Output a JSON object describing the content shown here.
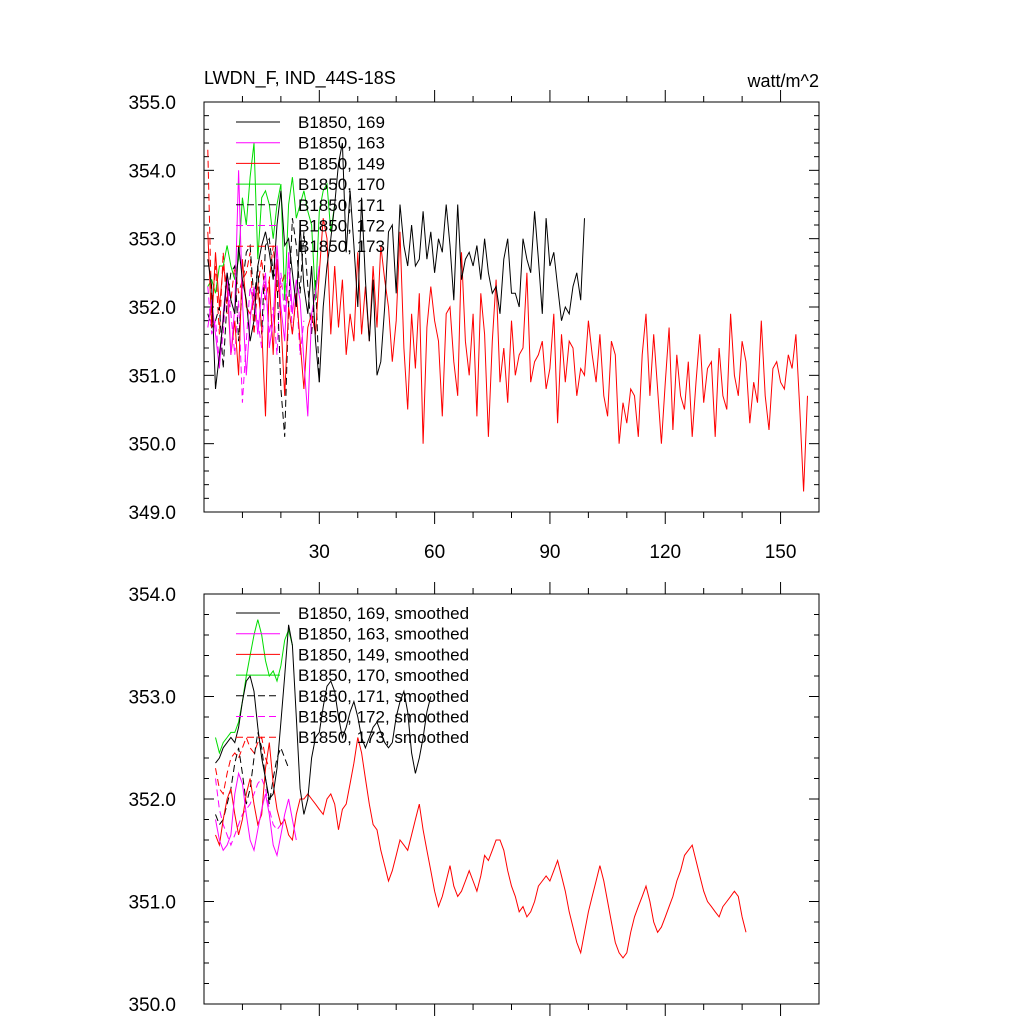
{
  "chart_data": [
    {
      "type": "line",
      "title": "LWDN_F, IND_44S-18S",
      "units": "watt/m^2",
      "xlim": [
        0,
        160
      ],
      "ylim": [
        349.0,
        355.0
      ],
      "xticks": [
        30,
        60,
        90,
        120,
        150
      ],
      "xtick_labels": [
        "30",
        "60",
        "90",
        "120",
        "150"
      ],
      "yticks": [
        349,
        350,
        351,
        352,
        353,
        354,
        355
      ],
      "ytick_labels": [
        "349.0",
        "350.0",
        "351.0",
        "352.0",
        "353.0",
        "354.0",
        "355.0"
      ],
      "legend_position": "top-left",
      "series": [
        {
          "name": "B1850, 169",
          "color": "#000000",
          "dash": "solid",
          "x_start": 1,
          "values": [
            352.7,
            352.3,
            350.8,
            351.3,
            351.8,
            352.5,
            352.1,
            351.9,
            352.9,
            352.4,
            352.1,
            351.5,
            351.8,
            352.6,
            352.9,
            353.1,
            352.8,
            352.4,
            353.2,
            353.7,
            352.9,
            353.0,
            352.5,
            352.0,
            353.2,
            352.3,
            351.9,
            352.6,
            351.5,
            350.9,
            352.0,
            352.6,
            353.0,
            353.5,
            354.1,
            354.4,
            352.8,
            353.7,
            352.9,
            352.0,
            353.6,
            352.4,
            351.5,
            352.4,
            351.0,
            351.2,
            352.0,
            353.1,
            353.2,
            352.2,
            353.5,
            352.9,
            352.6,
            353.2,
            352.6,
            352.7,
            353.4,
            352.7,
            353.1,
            352.5,
            353.0,
            352.8,
            353.5,
            352.9,
            352.1,
            353.5,
            352.4,
            352.7,
            352.8,
            352.6,
            352.9,
            352.4,
            353.0,
            352.5,
            352.2,
            352.3,
            351.9,
            352.7,
            353.0,
            352.2,
            352.2,
            352.0,
            353.0,
            352.7,
            352.5,
            353.4,
            352.7,
            351.9,
            353.3,
            352.6,
            352.8,
            352.3,
            351.8,
            352.0,
            351.9,
            352.3,
            352.5,
            352.1,
            353.3
          ]
        },
        {
          "name": "B1850, 163",
          "color": "#ff00ff",
          "dash": "solid",
          "x_start": 1,
          "values": [
            351.7,
            352.1,
            351.6,
            351.1,
            351.9,
            352.5,
            351.3,
            352.0,
            354.0,
            352.1,
            351.0,
            351.8,
            352.3,
            351.6,
            352.2,
            352.5,
            351.4,
            351.8,
            352.9,
            352.0,
            351.5,
            352.8,
            351.9,
            352.4,
            352.1,
            351.2,
            350.4,
            351.9,
            352.2,
            352.6
          ]
        },
        {
          "name": "B1850, 149",
          "color": "#ff0000",
          "dash": "solid",
          "x_start": 1,
          "values": [
            353.1,
            351.7,
            352.8,
            352.0,
            352.6,
            352.3,
            351.3,
            351.8,
            351.0,
            352.7,
            352.0,
            351.9,
            352.1,
            352.3,
            351.7,
            350.4,
            352.4,
            351.3,
            352.7,
            351.8,
            350.7,
            352.0,
            351.6,
            352.2,
            351.5,
            350.8,
            351.7,
            351.9,
            351.6,
            352.5,
            353.3,
            353.0,
            351.6,
            352.6,
            351.7,
            352.4,
            351.3,
            351.9,
            351.5,
            352.8,
            351.6,
            352.3,
            351.5,
            352.6,
            351.7,
            352.9,
            352.4,
            352.0,
            351.2,
            351.8,
            353.1,
            351.4,
            350.5,
            351.9,
            351.1,
            352.2,
            350.0,
            351.7,
            352.3,
            351.8,
            351.5,
            350.4,
            351.9,
            352.0,
            351.2,
            350.7,
            352.8,
            351.5,
            351.0,
            351.9,
            350.4,
            352.2,
            351.6,
            350.1,
            351.5,
            352.4,
            350.9,
            351.4,
            350.6,
            351.8,
            351.0,
            351.3,
            351.4,
            352.5,
            350.9,
            351.2,
            351.3,
            351.5,
            350.8,
            351.1,
            351.9,
            350.3,
            351.6,
            350.9,
            351.5,
            351.4,
            350.7,
            351.1,
            351.0,
            351.8,
            351.3,
            350.9,
            351.6,
            350.7,
            350.4,
            351.5,
            351.3,
            350.0,
            350.6,
            350.3,
            350.8,
            350.7,
            350.1,
            351.3,
            351.9,
            350.7,
            351.6,
            350.8,
            350.0,
            350.9,
            351.7,
            350.2,
            351.3,
            350.7,
            350.5,
            351.2,
            350.1,
            350.9,
            351.6,
            350.6,
            351.1,
            351.2,
            350.1,
            351.4,
            350.7,
            350.5,
            351.9,
            351.0,
            350.7,
            351.5,
            351.2,
            350.3,
            350.9,
            350.6,
            351.8,
            350.7,
            350.2,
            351.1,
            351.2,
            350.9,
            350.8,
            351.3,
            351.1,
            351.6,
            350.5,
            349.3,
            350.7
          ]
        },
        {
          "name": "B1850, 170",
          "color": "#00dd00",
          "dash": "solid",
          "x_start": 1,
          "values": [
            352.3,
            352.4,
            352.2,
            352.6,
            352.6,
            352.9,
            352.6,
            352.4,
            352.7,
            353.6,
            353.2,
            353.9,
            354.4,
            352.7,
            353.6,
            353.7,
            353.5,
            353.0,
            353.5,
            353.8,
            352.1,
            353.5,
            353.9,
            353.3,
            353.5,
            353.7,
            353.4,
            353.2,
            352.1,
            353.4,
            353.7,
            353.8,
            353.1,
            353.5
          ]
        },
        {
          "name": "B1850, 171",
          "color": "#000000",
          "dash": "dash",
          "x_start": 1,
          "values": [
            351.9,
            351.7,
            351.8,
            352.0,
            351.1,
            352.1,
            352.5,
            352.6,
            351.5,
            352.3,
            352.8,
            352.9,
            352.1,
            352.6,
            351.6,
            352.9,
            353.0,
            352.5,
            352.4,
            350.8,
            350.1,
            352.0,
            353.3,
            352.9,
            352.2,
            353.1,
            352.3,
            351.6,
            352.4,
            350.9
          ]
        },
        {
          "name": "B1850, 172",
          "color": "#ff00ff",
          "dash": "dash",
          "x_start": 1,
          "values": [
            352.3,
            351.6,
            351.8,
            351.2,
            351.6,
            352.5,
            351.9,
            351.3,
            352.1,
            350.6,
            351.5,
            352.3,
            352.0,
            351.8,
            351.4,
            352.4,
            351.6,
            352.0,
            351.3,
            352.5,
            351.9,
            352.7,
            351.6,
            352.2,
            351.3,
            351.8
          ]
        },
        {
          "name": "B1850, 173",
          "color": "#ff0000",
          "dash": "dash",
          "x_start": 1,
          "values": [
            354.3,
            351.9,
            352.6,
            351.6,
            352.8,
            351.9,
            352.1,
            352.6,
            352.2,
            352.4,
            352.5,
            352.8,
            351.6,
            352.3,
            352.7,
            352.1,
            352.4,
            352.9,
            352.2,
            352.3,
            352.5,
            352.0
          ]
        }
      ]
    },
    {
      "type": "line",
      "title": "",
      "xlim": [
        0,
        160
      ],
      "ylim": [
        350.0,
        354.0
      ],
      "xticks": [
        30,
        60,
        90,
        120,
        150
      ],
      "yticks": [
        350,
        351,
        352,
        353,
        354
      ],
      "ytick_labels": [
        "350.0",
        "351.0",
        "352.0",
        "353.0",
        "354.0"
      ],
      "legend_position": "top-left",
      "series": [
        {
          "name": "B1850, 169, smoothed",
          "color": "#000000",
          "dash": "solid",
          "x_start": 3,
          "values": [
            352.35,
            352.4,
            352.5,
            352.55,
            352.6,
            352.55,
            352.7,
            352.95,
            353.15,
            353.2,
            353.05,
            352.7,
            352.4,
            352.2,
            352.0,
            352.05,
            352.3,
            352.75,
            353.2,
            353.7,
            353.5,
            352.8,
            352.1,
            351.85,
            352.0,
            352.4,
            352.6,
            352.65,
            352.9,
            353.1,
            353.15,
            353.05,
            352.8,
            352.6,
            352.7,
            352.85,
            352.95,
            352.8,
            352.6,
            352.5,
            352.6,
            352.7,
            352.75,
            352.65,
            352.55,
            352.5,
            352.55,
            352.8,
            352.95,
            353.05,
            352.85,
            352.45,
            352.25,
            352.4,
            352.6,
            352.85,
            353.0
          ]
        },
        {
          "name": "B1850, 163, smoothed",
          "color": "#ff00ff",
          "dash": "solid",
          "x_start": 3,
          "values": [
            351.8,
            351.6,
            351.5,
            351.55,
            351.65,
            352.05,
            352.25,
            352.15,
            351.85,
            351.6,
            351.5,
            351.7,
            351.9,
            352.05,
            351.85,
            351.55,
            351.45,
            351.65,
            351.85,
            352.0,
            351.8,
            351.6
          ]
        },
        {
          "name": "B1850, 149, smoothed",
          "color": "#ff0000",
          "dash": "solid",
          "x_start": 3,
          "values": [
            351.65,
            351.55,
            351.8,
            352.0,
            352.1,
            351.85,
            351.65,
            351.8,
            352.05,
            352.2,
            351.95,
            351.75,
            351.85,
            352.3,
            352.55,
            352.15,
            351.9,
            351.75,
            351.8,
            351.65,
            351.6,
            351.85,
            352.0,
            352.0,
            352.05,
            352.0,
            351.95,
            351.9,
            351.85,
            352.0,
            352.05,
            351.95,
            351.7,
            351.9,
            351.95,
            352.15,
            352.35,
            352.6,
            352.45,
            352.2,
            351.95,
            351.75,
            351.7,
            351.5,
            351.35,
            351.2,
            351.3,
            351.45,
            351.6,
            351.55,
            351.5,
            351.65,
            351.8,
            351.95,
            351.7,
            351.5,
            351.3,
            351.1,
            350.95,
            351.05,
            351.2,
            351.35,
            351.15,
            351.05,
            351.1,
            351.2,
            351.3,
            351.2,
            351.1,
            351.25,
            351.45,
            351.4,
            351.5,
            351.6,
            351.6,
            351.5,
            351.3,
            351.15,
            351.05,
            350.9,
            350.95,
            350.85,
            350.9,
            351.0,
            351.15,
            351.2,
            351.25,
            351.2,
            351.3,
            351.4,
            351.25,
            351.1,
            350.9,
            350.75,
            350.6,
            350.5,
            350.7,
            350.9,
            351.05,
            351.2,
            351.35,
            351.2,
            351.0,
            350.8,
            350.6,
            350.5,
            350.45,
            350.5,
            350.7,
            350.85,
            350.95,
            351.05,
            351.15,
            351.0,
            350.8,
            350.7,
            350.75,
            350.85,
            350.95,
            351.05,
            351.2,
            351.3,
            351.45,
            351.5,
            351.55,
            351.4,
            351.25,
            351.1,
            351.0,
            350.95,
            350.9,
            350.85,
            350.95,
            351.0,
            351.05,
            351.1,
            351.05,
            350.85,
            350.7
          ]
        },
        {
          "name": "B1850, 170, smoothed",
          "color": "#00dd00",
          "dash": "solid",
          "x_start": 3,
          "values": [
            352.6,
            352.45,
            352.55,
            352.6,
            352.65,
            352.65,
            352.75,
            352.95,
            353.2,
            353.4,
            353.6,
            353.75,
            353.6,
            353.35,
            353.2,
            353.25,
            353.15,
            353.3,
            353.55,
            353.65,
            353.5
          ]
        },
        {
          "name": "B1850, 171, smoothed",
          "color": "#000000",
          "dash": "dash",
          "x_start": 3,
          "values": [
            351.85,
            351.75,
            351.8,
            351.95,
            352.1,
            352.35,
            352.5,
            352.25,
            351.95,
            352.1,
            352.4,
            352.65,
            352.5,
            352.2,
            351.95,
            352.2,
            352.4,
            352.5,
            352.4,
            352.3
          ]
        },
        {
          "name": "B1850, 172, smoothed",
          "color": "#ff00ff",
          "dash": "dash",
          "x_start": 3,
          "values": [
            352.2,
            351.9,
            351.75,
            351.65,
            351.55,
            351.65,
            351.75,
            351.85,
            351.9,
            351.95,
            352.05,
            352.15,
            352.2,
            352.1,
            351.9,
            351.75,
            351.7,
            351.75
          ]
        },
        {
          "name": "B1850, 173, smoothed",
          "color": "#ff0000",
          "dash": "dash",
          "x_start": 3,
          "values": [
            352.3,
            352.1,
            352.05,
            352.25,
            352.4,
            352.45,
            352.4,
            352.5,
            352.6,
            352.5,
            352.45,
            352.55,
            352.6,
            352.4,
            352.3
          ]
        }
      ]
    }
  ]
}
